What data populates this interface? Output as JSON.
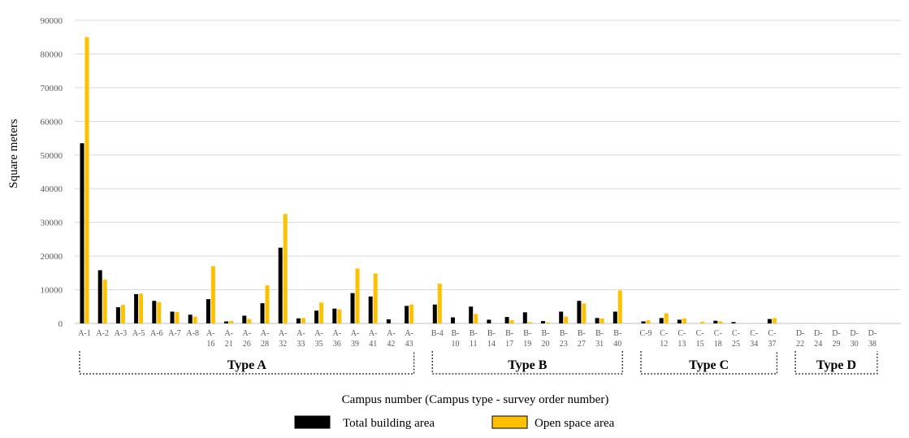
{
  "chart_data": {
    "type": "bar",
    "title": "",
    "xlabel": "Campus number (Campus type - survey order number)",
    "ylabel": "Square meters",
    "ylim": [
      0,
      90000
    ],
    "yticks": [
      "0",
      "10000",
      "20000",
      "30000",
      "40000",
      "50000",
      "60000",
      "70000",
      "80000",
      "90000"
    ],
    "grid": true,
    "legend_position": "bottom-center",
    "colors": {
      "total": "#000000",
      "open": "#FFC000",
      "grid": "#D9D9D9",
      "bracket": "#404040"
    },
    "groups": [
      {
        "label": "Type A",
        "categories": [
          {
            "l1": "A-1",
            "l2": "",
            "total": 53500,
            "open": 85000
          },
          {
            "l1": "A-2",
            "l2": "",
            "total": 15800,
            "open": 13000
          },
          {
            "l1": "A-3",
            "l2": "",
            "total": 4800,
            "open": 5500
          },
          {
            "l1": "A-5",
            "l2": "",
            "total": 8700,
            "open": 8800
          },
          {
            "l1": "A-6",
            "l2": "",
            "total": 6700,
            "open": 6300
          },
          {
            "l1": "A-7",
            "l2": "",
            "total": 3500,
            "open": 3400
          },
          {
            "l1": "A-8",
            "l2": "",
            "total": 2600,
            "open": 2000
          },
          {
            "l1": "A-",
            "l2": "16",
            "total": 7200,
            "open": 17000
          },
          {
            "l1": "A-",
            "l2": "21",
            "total": 600,
            "open": 700
          },
          {
            "l1": "A-",
            "l2": "26",
            "total": 2300,
            "open": 1300
          },
          {
            "l1": "A-",
            "l2": "28",
            "total": 6000,
            "open": 11300
          },
          {
            "l1": "A-",
            "l2": "32",
            "total": 22500,
            "open": 32500
          },
          {
            "l1": "A-",
            "l2": "33",
            "total": 1500,
            "open": 1600
          },
          {
            "l1": "A-",
            "l2": "35",
            "total": 3800,
            "open": 6200
          },
          {
            "l1": "A-",
            "l2": "36",
            "total": 4400,
            "open": 4200
          },
          {
            "l1": "A-",
            "l2": "39",
            "total": 9000,
            "open": 16300
          },
          {
            "l1": "A-",
            "l2": "41",
            "total": 8000,
            "open": 14800
          },
          {
            "l1": "A-",
            "l2": "42",
            "total": 1200,
            "open": 0
          },
          {
            "l1": "A-",
            "l2": "43",
            "total": 5200,
            "open": 5600
          }
        ]
      },
      {
        "label": "Type B",
        "categories": [
          {
            "l1": "B-4",
            "l2": "",
            "total": 5600,
            "open": 11800
          },
          {
            "l1": "B-",
            "l2": "10",
            "total": 1800,
            "open": 0
          },
          {
            "l1": "B-",
            "l2": "11",
            "total": 5000,
            "open": 2800
          },
          {
            "l1": "B-",
            "l2": "14",
            "total": 1100,
            "open": 0
          },
          {
            "l1": "B-",
            "l2": "17",
            "total": 1900,
            "open": 1000
          },
          {
            "l1": "B-",
            "l2": "19",
            "total": 3300,
            "open": 400
          },
          {
            "l1": "B-",
            "l2": "20",
            "total": 700,
            "open": 300
          },
          {
            "l1": "B-",
            "l2": "23",
            "total": 3500,
            "open": 2000
          },
          {
            "l1": "B-",
            "l2": "27",
            "total": 6700,
            "open": 5900
          },
          {
            "l1": "B-",
            "l2": "31",
            "total": 1600,
            "open": 1500
          },
          {
            "l1": "B-",
            "l2": "40",
            "total": 3500,
            "open": 9800
          }
        ]
      },
      {
        "label": "Type C",
        "categories": [
          {
            "l1": "C-9",
            "l2": "",
            "total": 600,
            "open": 900
          },
          {
            "l1": "C-",
            "l2": "12",
            "total": 1600,
            "open": 3000
          },
          {
            "l1": "C-",
            "l2": "13",
            "total": 1100,
            "open": 1500
          },
          {
            "l1": "C-",
            "l2": "15",
            "total": 0,
            "open": 500
          },
          {
            "l1": "C-",
            "l2": "18",
            "total": 800,
            "open": 600
          },
          {
            "l1": "C-",
            "l2": "25",
            "total": 400,
            "open": 0
          },
          {
            "l1": "C-",
            "l2": "34",
            "total": 0,
            "open": 0
          },
          {
            "l1": "C-",
            "l2": "37",
            "total": 1300,
            "open": 1600
          }
        ]
      },
      {
        "label": "Type D",
        "categories": [
          {
            "l1": "D-",
            "l2": "22",
            "total": 0,
            "open": 0
          },
          {
            "l1": "D-",
            "l2": "24",
            "total": 0,
            "open": 0
          },
          {
            "l1": "D-",
            "l2": "29",
            "total": 0,
            "open": 0
          },
          {
            "l1": "D-",
            "l2": "30",
            "total": 0,
            "open": 0
          },
          {
            "l1": "D-",
            "l2": "38",
            "total": 0,
            "open": 0
          }
        ]
      }
    ],
    "legend": [
      "Total building area",
      "Open space area"
    ]
  }
}
